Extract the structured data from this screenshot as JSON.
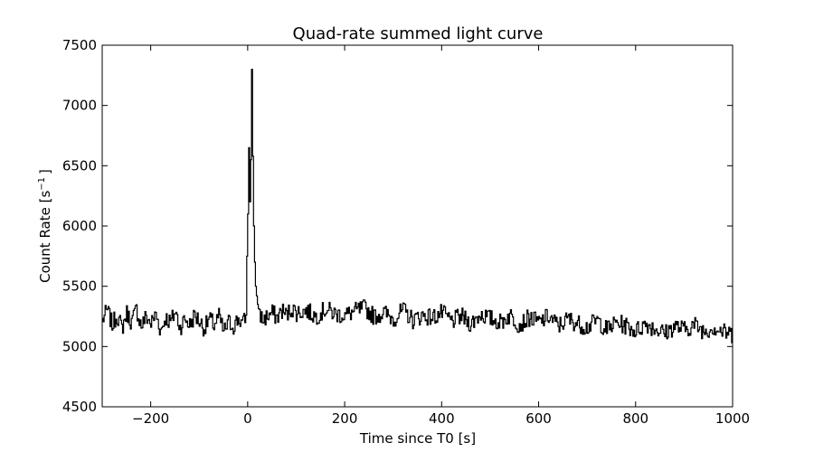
{
  "chart_data": {
    "type": "line",
    "title": "Quad-rate summed light curve",
    "xlabel": "Time since T0 [s]",
    "ylabel_base": "Count Rate [s",
    "ylabel_sup": "−1",
    "ylabel_end": "]",
    "xlim": [
      -300,
      1000
    ],
    "ylim": [
      4500,
      7500
    ],
    "xticks": [
      -200,
      0,
      200,
      400,
      600,
      800,
      1000
    ],
    "xtick_labels": [
      "−200",
      "0",
      "200",
      "400",
      "600",
      "800",
      "1000"
    ],
    "yticks": [
      4500,
      5000,
      5500,
      6000,
      6500,
      7000,
      7500
    ],
    "ytick_labels": [
      "4500",
      "5000",
      "5500",
      "6000",
      "6500",
      "7000",
      "7500"
    ],
    "grid": false,
    "line_color": "#000000",
    "series": [
      {
        "bin_width": 2,
        "x": [
          -300,
          -290,
          -280,
          -270,
          -260,
          -250,
          -240,
          -230,
          -220,
          -210,
          -200,
          -190,
          -180,
          -170,
          -160,
          -150,
          -140,
          -130,
          -120,
          -110,
          -100,
          -90,
          -80,
          -70,
          -60,
          -50,
          -40,
          -30,
          -20,
          -10,
          -4,
          -2,
          0,
          2,
          4,
          6,
          8,
          10,
          12,
          14,
          16,
          18,
          20,
          24,
          30,
          40,
          50,
          60,
          70,
          80,
          90,
          100,
          120,
          140,
          160,
          180,
          200,
          220,
          240,
          260,
          280,
          300,
          320,
          340,
          360,
          380,
          400,
          420,
          440,
          460,
          480,
          500,
          520,
          540,
          560,
          580,
          600,
          620,
          640,
          660,
          680,
          700,
          720,
          740,
          760,
          780,
          800,
          820,
          840,
          860,
          880,
          900,
          920,
          940,
          960,
          980,
          1000
        ],
        "y": [
          5220,
          5300,
          5180,
          5260,
          5150,
          5280,
          5200,
          5310,
          5170,
          5250,
          5190,
          5270,
          5130,
          5240,
          5200,
          5290,
          5160,
          5230,
          5180,
          5260,
          5210,
          5150,
          5230,
          5180,
          5250,
          5120,
          5200,
          5170,
          5230,
          5190,
          5260,
          5750,
          6100,
          6650,
          6200,
          6550,
          7300,
          6580,
          6000,
          5700,
          5500,
          5420,
          5350,
          5280,
          5220,
          5250,
          5280,
          5240,
          5300,
          5260,
          5320,
          5280,
          5300,
          5250,
          5310,
          5270,
          5260,
          5290,
          5320,
          5250,
          5280,
          5230,
          5300,
          5220,
          5260,
          5240,
          5280,
          5210,
          5250,
          5190,
          5270,
          5230,
          5200,
          5260,
          5180,
          5240,
          5200,
          5250,
          5170,
          5230,
          5190,
          5160,
          5220,
          5140,
          5200,
          5170,
          5130,
          5190,
          5150,
          5110,
          5170,
          5140,
          5180,
          5130,
          5160,
          5120,
          5100
        ]
      }
    ]
  }
}
